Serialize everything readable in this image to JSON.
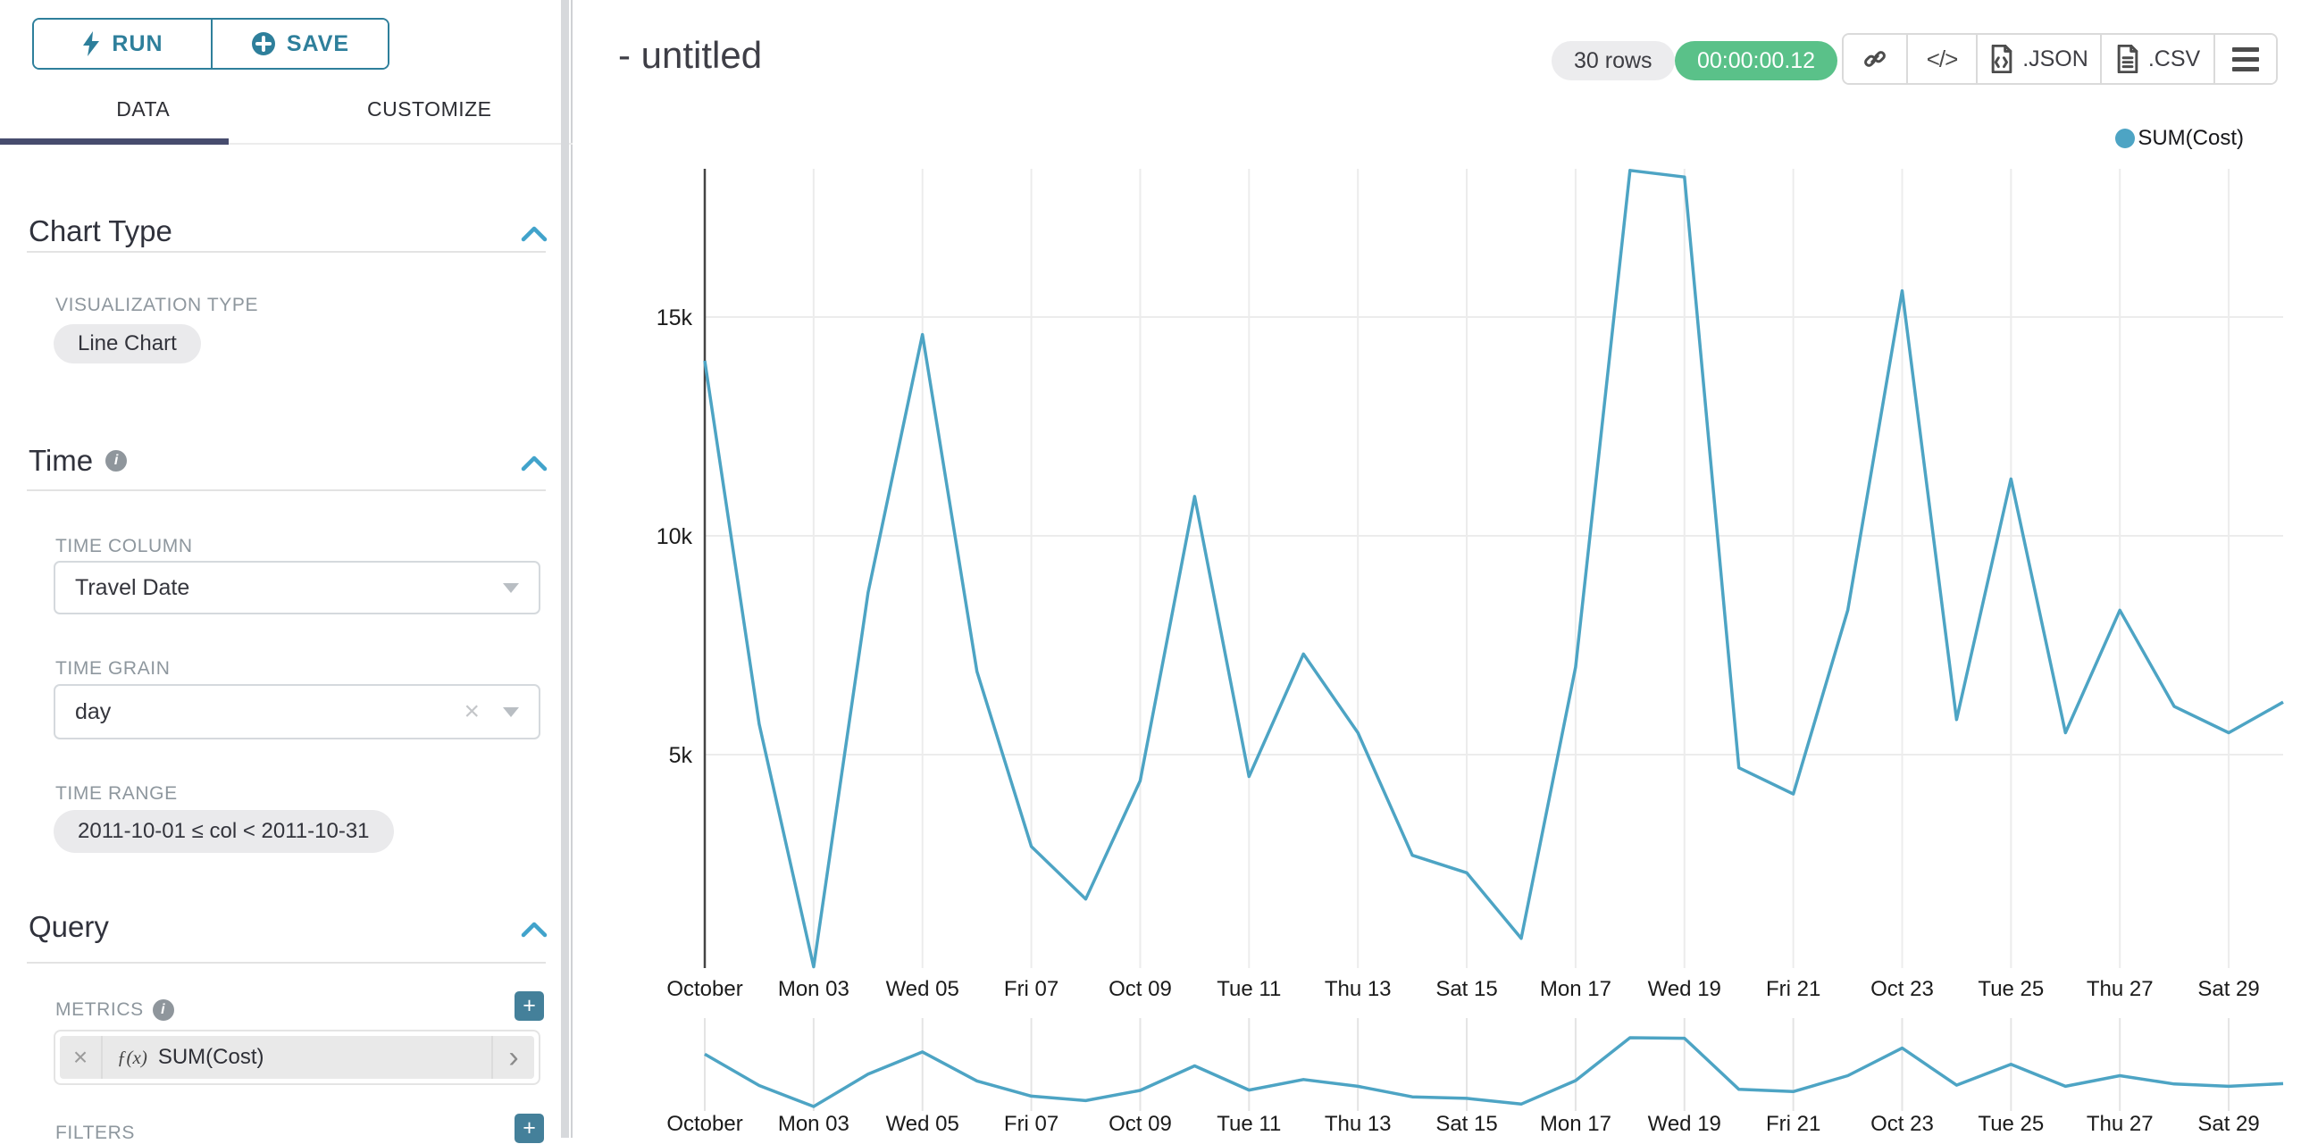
{
  "sidebar": {
    "run_label": "RUN",
    "save_label": "SAVE",
    "tabs": [
      {
        "label": "DATA"
      },
      {
        "label": "CUSTOMIZE"
      }
    ],
    "chart_type": {
      "title": "Chart Type",
      "viz_type_label": "VISUALIZATION TYPE",
      "viz_type_value": "Line Chart"
    },
    "time": {
      "title": "Time",
      "time_column_label": "TIME COLUMN",
      "time_column_value": "Travel Date",
      "time_grain_label": "TIME GRAIN",
      "time_grain_value": "day",
      "time_range_label": "TIME RANGE",
      "time_range_value": "2011-10-01 ≤ col < 2011-10-31"
    },
    "query": {
      "title": "Query",
      "metrics_label": "METRICS",
      "metric_fx": "ƒ(x)",
      "metric_value": "SUM(Cost)",
      "filters_label": "FILTERS"
    }
  },
  "header": {
    "title": "- untitled",
    "rows_badge": "30 rows",
    "timer_badge": "00:00:00.12",
    "export_json_label": ".JSON",
    "export_csv_label": ".CSV"
  },
  "legend": {
    "label": "SUM(Cost)"
  },
  "colors": {
    "line": "#4da4c4",
    "accent_teal": "#2e7f9b",
    "chevron_blue": "#41a3cb",
    "timer_green": "#5ac189",
    "tab_underline": "#474c6e",
    "grid": "#ececec",
    "axis": "#444444"
  },
  "chart_data": {
    "type": "line",
    "title": "- untitled",
    "legend_entries": [
      "SUM(Cost)"
    ],
    "legend_position": "top-right",
    "grid": true,
    "x": [
      "2011-10-01",
      "2011-10-02",
      "2011-10-03",
      "2011-10-04",
      "2011-10-05",
      "2011-10-06",
      "2011-10-07",
      "2011-10-08",
      "2011-10-09",
      "2011-10-10",
      "2011-10-11",
      "2011-10-12",
      "2011-10-13",
      "2011-10-14",
      "2011-10-15",
      "2011-10-16",
      "2011-10-17",
      "2011-10-18",
      "2011-10-19",
      "2011-10-20",
      "2011-10-21",
      "2011-10-22",
      "2011-10-23",
      "2011-10-24",
      "2011-10-25",
      "2011-10-26",
      "2011-10-27",
      "2011-10-28",
      "2011-10-29",
      "2011-10-30"
    ],
    "x_tick_labels": [
      "October",
      "Mon 03",
      "Wed 05",
      "Fri 07",
      "Oct 09",
      "Tue 11",
      "Thu 13",
      "Sat 15",
      "Mon 17",
      "Wed 19",
      "Fri 21",
      "Oct 23",
      "Tue 25",
      "Thu 27",
      "Sat 29"
    ],
    "series": [
      {
        "name": "SUM(Cost)",
        "values": [
          14000,
          5700,
          150,
          8700,
          14600,
          6900,
          2900,
          1700,
          4400,
          10900,
          4500,
          7300,
          5500,
          2700,
          2300,
          800,
          7000,
          18350,
          18200,
          4700,
          4100,
          8300,
          15600,
          5800,
          11300,
          5500,
          8300,
          6100,
          5500,
          6200
        ]
      }
    ],
    "xlabel": "",
    "ylabel": "",
    "y_ticks": [
      "5k",
      "10k",
      "15k"
    ],
    "y_tick_values": [
      5000,
      10000,
      15000
    ],
    "ylim": [
      0,
      18500
    ],
    "has_range_brush_mini_chart": true
  }
}
